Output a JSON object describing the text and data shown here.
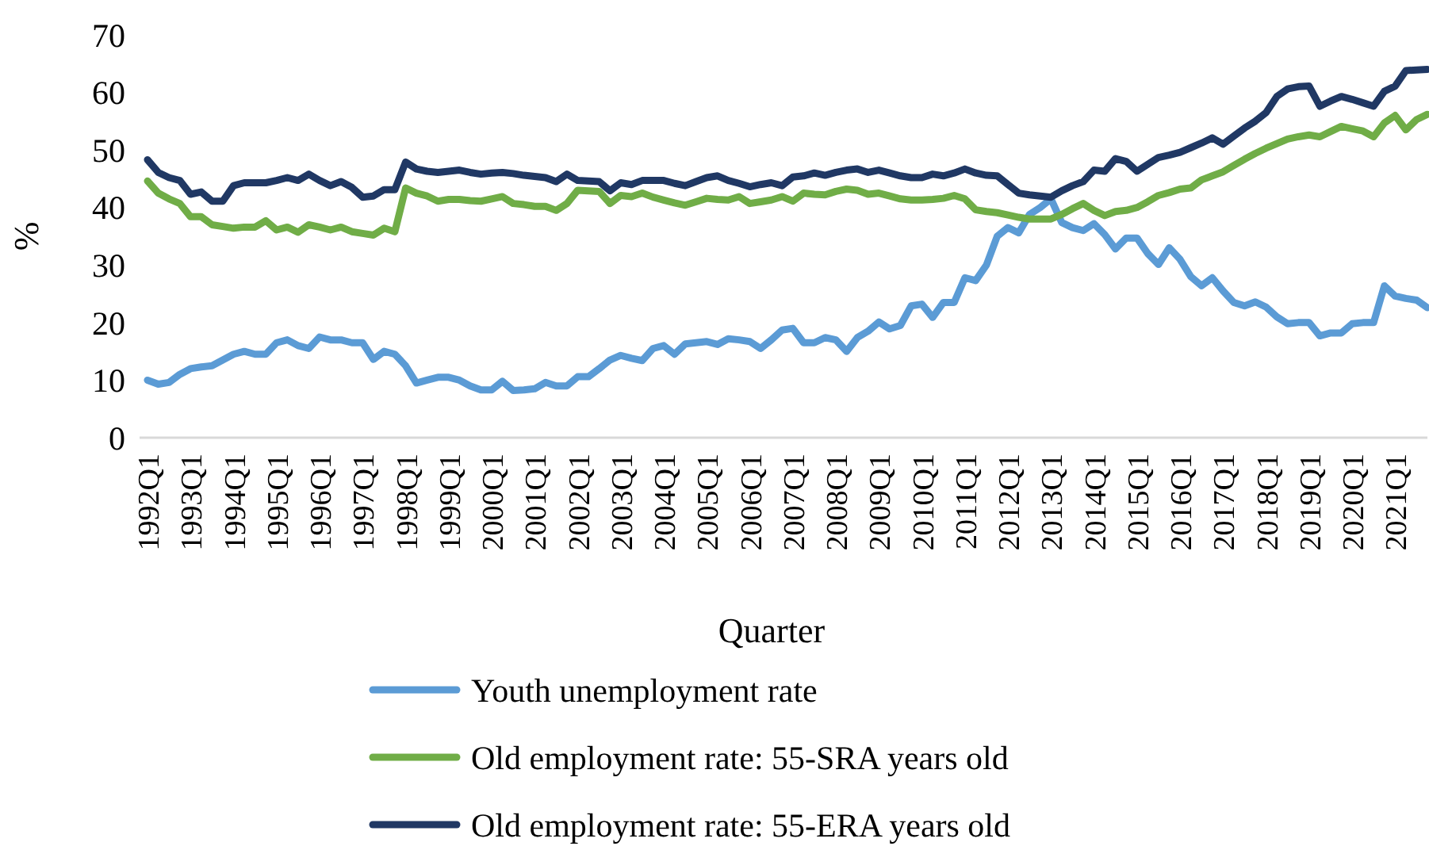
{
  "chart_data": {
    "type": "line",
    "xlabel": "Quarter",
    "ylabel": "%",
    "categories": [
      "1992Q1",
      null,
      null,
      null,
      "1993Q1",
      null,
      null,
      null,
      "1994Q1",
      null,
      null,
      null,
      "1995Q1",
      null,
      null,
      null,
      "1996Q1",
      null,
      null,
      null,
      "1997Q1",
      null,
      null,
      null,
      "1998Q1",
      null,
      null,
      null,
      "1999Q1",
      null,
      null,
      null,
      "2000Q1",
      null,
      null,
      null,
      "2001Q1",
      null,
      null,
      null,
      "2002Q1",
      null,
      null,
      null,
      "2003Q1",
      null,
      null,
      null,
      "2004Q1",
      null,
      null,
      null,
      "2005Q1",
      null,
      null,
      null,
      "2006Q1",
      null,
      null,
      null,
      "2007Q1",
      null,
      null,
      null,
      "2008Q1",
      null,
      null,
      null,
      "2009Q1",
      null,
      null,
      null,
      "2010Q1",
      null,
      null,
      null,
      "2011Q1",
      null,
      null,
      null,
      "2012Q1",
      null,
      null,
      null,
      "2013Q1",
      null,
      null,
      null,
      "2014Q1",
      null,
      null,
      null,
      "2015Q1",
      null,
      null,
      null,
      "2016Q1",
      null,
      null,
      null,
      "2017Q1",
      null,
      null,
      null,
      "2018Q1",
      null,
      null,
      null,
      "2019Q1",
      null,
      null,
      null,
      "2020Q1",
      null,
      null,
      null,
      "2021Q1",
      null,
      null,
      null
    ],
    "series": [
      {
        "name": "Youth unemployment rate",
        "color": "#5b9bd5",
        "values": [
          10,
          9.3,
          9.6,
          11,
          12,
          12.3,
          12.5,
          13.5,
          14.5,
          15,
          14.5,
          14.5,
          16.5,
          17,
          16,
          15.5,
          17.5,
          17,
          17,
          16.5,
          16.5,
          13.6,
          15,
          14.5,
          12.5,
          9.5,
          10,
          10.5,
          10.5,
          10,
          9,
          8.3,
          8.3,
          9.8,
          8.2,
          8.3,
          8.5,
          9.6,
          9,
          9,
          10.6,
          10.6,
          12,
          13.5,
          14.3,
          13.8,
          13.4,
          15.5,
          16,
          14.5,
          16.3,
          16.5,
          16.7,
          16.2,
          17.2,
          17,
          16.7,
          15.5,
          17,
          18.7,
          19,
          16.5,
          16.5,
          17.4,
          17,
          15,
          17.4,
          18.5,
          20.1,
          18.9,
          19.5,
          22.9,
          23.2,
          20.9,
          23.5,
          23.5,
          27.8,
          27.3,
          30,
          35,
          36.5,
          35.6,
          38.8,
          40,
          41.5,
          37.4,
          36.5,
          36,
          37.2,
          35.3,
          32.8,
          34.7,
          34.7,
          32,
          30.1,
          33,
          31,
          28,
          26.4,
          27.8,
          25.5,
          23.5,
          22.9,
          23.6,
          22.7,
          21,
          19.8,
          20,
          20,
          17.7,
          18.2,
          18.2,
          19.8,
          20,
          20,
          26.4,
          24.6,
          24.2,
          23.9,
          22.6
        ]
      },
      {
        "name": "Old employment rate: 55-SRA years old",
        "color": "#70ad47",
        "values": [
          44.6,
          42.5,
          41.5,
          40.7,
          38.4,
          38.4,
          37,
          36.7,
          36.4,
          36.6,
          36.6,
          37.7,
          36.1,
          36.6,
          35.7,
          37,
          36.6,
          36.1,
          36.6,
          35.8,
          35.5,
          35.2,
          36.4,
          35.8,
          43.4,
          42.5,
          42,
          41.1,
          41.4,
          41.4,
          41.2,
          41.1,
          41.5,
          41.9,
          40.7,
          40.5,
          40.2,
          40.2,
          39.5,
          40.7,
          43,
          42.9,
          42.8,
          40.7,
          42.1,
          41.9,
          42.5,
          41.8,
          41.3,
          40.8,
          40.4,
          41,
          41.6,
          41.4,
          41.3,
          41.9,
          40.7,
          41,
          41.3,
          41.9,
          41.1,
          42.5,
          42.3,
          42.2,
          42.8,
          43.2,
          43,
          42.3,
          42.5,
          42,
          41.5,
          41.3,
          41.3,
          41.4,
          41.6,
          42.1,
          41.5,
          39.6,
          39.3,
          39.1,
          38.7,
          38.3,
          38,
          38,
          38,
          38.8,
          39.8,
          40.7,
          39.5,
          38.6,
          39.3,
          39.5,
          40,
          41,
          42.1,
          42.6,
          43.2,
          43.4,
          44.8,
          45.5,
          46.2,
          47.3,
          48.4,
          49.4,
          50.3,
          51.1,
          51.9,
          52.3,
          52.6,
          52.3,
          53.2,
          54.1,
          53.7,
          53.3,
          52.3,
          54.7,
          56,
          53.5,
          55.3,
          56.2
        ]
      },
      {
        "name": "Old employment rate: 55-ERA years old",
        "color": "#203864",
        "values": [
          48.3,
          46.1,
          45.2,
          44.7,
          42.3,
          42.7,
          41.1,
          41.1,
          43.8,
          44.3,
          44.3,
          44.3,
          44.7,
          45.2,
          44.7,
          45.8,
          44.7,
          43.8,
          44.5,
          43.5,
          41.8,
          42,
          43.1,
          43.1,
          47.9,
          46.7,
          46.3,
          46.1,
          46.3,
          46.5,
          46.1,
          45.8,
          46,
          46.1,
          45.9,
          45.6,
          45.4,
          45.2,
          44.5,
          45.8,
          44.7,
          44.6,
          44.5,
          42.9,
          44.3,
          44,
          44.7,
          44.7,
          44.7,
          44.2,
          43.8,
          44.5,
          45.2,
          45.5,
          44.7,
          44.2,
          43.6,
          44,
          44.3,
          43.8,
          45.3,
          45.5,
          46,
          45.6,
          46.1,
          46.5,
          46.7,
          46.1,
          46.5,
          46,
          45.5,
          45.2,
          45.2,
          45.8,
          45.5,
          46,
          46.7,
          46,
          45.6,
          45.5,
          44,
          42.5,
          42.2,
          42,
          41.8,
          42.9,
          43.8,
          44.5,
          46.5,
          46.3,
          48.5,
          48,
          46.3,
          47.5,
          48.7,
          49.1,
          49.6,
          50.4,
          51.2,
          52.1,
          51,
          52.4,
          53.8,
          55,
          56.5,
          59.3,
          60.6,
          61,
          61.1,
          57.6,
          58.5,
          59.3,
          58.8,
          58.2,
          57.6,
          60.2,
          61.1,
          63.8,
          63.9,
          64
        ]
      }
    ],
    "ylim": [
      0,
      70
    ],
    "yticks": [
      0,
      10,
      20,
      30,
      40,
      50,
      60,
      70
    ],
    "grid": false,
    "legend": "bottom",
    "marker": "none",
    "line_style": "solid"
  }
}
